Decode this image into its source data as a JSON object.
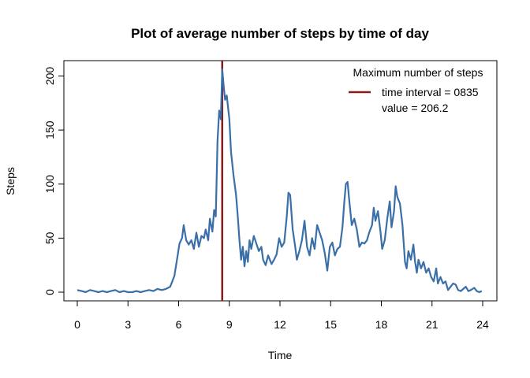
{
  "chart_data": {
    "type": "line",
    "title": "Plot of average number of steps by time of day",
    "xlabel": "Time",
    "ylabel": "Steps",
    "xlim": [
      0,
      24
    ],
    "ylim": [
      0,
      206.2
    ],
    "x_ticks": [
      0,
      3,
      6,
      9,
      12,
      15,
      18,
      21,
      24
    ],
    "y_ticks": [
      0,
      50,
      100,
      150,
      200
    ],
    "grid": false,
    "legend": {
      "position": "top-right",
      "title": "Maximum number of steps",
      "lines": [
        "time interval = 0835",
        "value = 206.2"
      ]
    },
    "series": [
      {
        "color": "#3a6fa8",
        "points": [
          [
            0.0,
            2
          ],
          [
            0.25,
            1
          ],
          [
            0.5,
            0
          ],
          [
            0.75,
            2
          ],
          [
            1.0,
            1
          ],
          [
            1.25,
            0
          ],
          [
            1.5,
            1
          ],
          [
            1.75,
            0
          ],
          [
            2.0,
            1
          ],
          [
            2.25,
            2
          ],
          [
            2.5,
            0
          ],
          [
            2.75,
            1
          ],
          [
            3.0,
            0
          ],
          [
            3.25,
            0
          ],
          [
            3.5,
            1
          ],
          [
            3.75,
            0
          ],
          [
            4.0,
            1
          ],
          [
            4.25,
            2
          ],
          [
            4.5,
            1
          ],
          [
            4.75,
            3
          ],
          [
            5.0,
            2
          ],
          [
            5.25,
            3
          ],
          [
            5.5,
            5
          ],
          [
            5.75,
            15
          ],
          [
            5.9,
            30
          ],
          [
            6.05,
            45
          ],
          [
            6.2,
            50
          ],
          [
            6.3,
            62
          ],
          [
            6.45,
            48
          ],
          [
            6.6,
            44
          ],
          [
            6.75,
            48
          ],
          [
            6.9,
            40
          ],
          [
            7.05,
            55
          ],
          [
            7.2,
            42
          ],
          [
            7.35,
            52
          ],
          [
            7.5,
            50
          ],
          [
            7.6,
            58
          ],
          [
            7.75,
            48
          ],
          [
            7.85,
            68
          ],
          [
            8.0,
            56
          ],
          [
            8.1,
            76
          ],
          [
            8.2,
            70
          ],
          [
            8.3,
            140
          ],
          [
            8.4,
            168
          ],
          [
            8.5,
            160
          ],
          [
            8.58,
            206.2
          ],
          [
            8.67,
            190
          ],
          [
            8.75,
            178
          ],
          [
            8.85,
            182
          ],
          [
            9.0,
            160
          ],
          [
            9.1,
            130
          ],
          [
            9.25,
            108
          ],
          [
            9.4,
            90
          ],
          [
            9.5,
            70
          ],
          [
            9.6,
            48
          ],
          [
            9.7,
            30
          ],
          [
            9.8,
            42
          ],
          [
            9.9,
            24
          ],
          [
            10.0,
            38
          ],
          [
            10.1,
            28
          ],
          [
            10.2,
            48
          ],
          [
            10.3,
            40
          ],
          [
            10.45,
            52
          ],
          [
            10.6,
            45
          ],
          [
            10.75,
            38
          ],
          [
            10.9,
            42
          ],
          [
            11.0,
            30
          ],
          [
            11.15,
            25
          ],
          [
            11.3,
            34
          ],
          [
            11.5,
            26
          ],
          [
            11.65,
            30
          ],
          [
            11.8,
            35
          ],
          [
            11.95,
            50
          ],
          [
            12.1,
            42
          ],
          [
            12.25,
            46
          ],
          [
            12.4,
            70
          ],
          [
            12.5,
            92
          ],
          [
            12.6,
            90
          ],
          [
            12.75,
            58
          ],
          [
            12.9,
            42
          ],
          [
            13.0,
            30
          ],
          [
            13.15,
            38
          ],
          [
            13.3,
            48
          ],
          [
            13.45,
            66
          ],
          [
            13.6,
            42
          ],
          [
            13.75,
            34
          ],
          [
            13.9,
            50
          ],
          [
            14.05,
            40
          ],
          [
            14.2,
            62
          ],
          [
            14.35,
            55
          ],
          [
            14.5,
            48
          ],
          [
            14.65,
            36
          ],
          [
            14.8,
            20
          ],
          [
            14.95,
            42
          ],
          [
            15.1,
            46
          ],
          [
            15.25,
            34
          ],
          [
            15.4,
            40
          ],
          [
            15.55,
            42
          ],
          [
            15.7,
            60
          ],
          [
            15.8,
            82
          ],
          [
            15.9,
            100
          ],
          [
            16.0,
            102
          ],
          [
            16.1,
            85
          ],
          [
            16.25,
            62
          ],
          [
            16.4,
            68
          ],
          [
            16.55,
            58
          ],
          [
            16.7,
            42
          ],
          [
            16.85,
            46
          ],
          [
            17.0,
            45
          ],
          [
            17.15,
            48
          ],
          [
            17.3,
            56
          ],
          [
            17.45,
            62
          ],
          [
            17.55,
            78
          ],
          [
            17.65,
            66
          ],
          [
            17.8,
            75
          ],
          [
            17.95,
            56
          ],
          [
            18.05,
            40
          ],
          [
            18.2,
            48
          ],
          [
            18.35,
            68
          ],
          [
            18.5,
            84
          ],
          [
            18.6,
            60
          ],
          [
            18.75,
            75
          ],
          [
            18.85,
            98
          ],
          [
            18.95,
            88
          ],
          [
            19.1,
            82
          ],
          [
            19.25,
            62
          ],
          [
            19.4,
            28
          ],
          [
            19.5,
            22
          ],
          [
            19.6,
            38
          ],
          [
            19.75,
            30
          ],
          [
            19.9,
            44
          ],
          [
            20.0,
            28
          ],
          [
            20.1,
            18
          ],
          [
            20.2,
            30
          ],
          [
            20.35,
            22
          ],
          [
            20.5,
            28
          ],
          [
            20.65,
            18
          ],
          [
            20.8,
            22
          ],
          [
            20.95,
            14
          ],
          [
            21.1,
            10
          ],
          [
            21.25,
            22
          ],
          [
            21.35,
            8
          ],
          [
            21.5,
            14
          ],
          [
            21.65,
            8
          ],
          [
            21.8,
            10
          ],
          [
            21.95,
            2
          ],
          [
            22.1,
            5
          ],
          [
            22.25,
            8
          ],
          [
            22.4,
            7
          ],
          [
            22.55,
            2
          ],
          [
            22.7,
            1
          ],
          [
            22.85,
            3
          ],
          [
            23.0,
            5
          ],
          [
            23.15,
            1
          ],
          [
            23.3,
            2
          ],
          [
            23.5,
            4
          ],
          [
            23.65,
            1
          ],
          [
            23.8,
            0
          ],
          [
            23.95,
            1
          ]
        ]
      }
    ],
    "max_marker": {
      "x": 8.58,
      "color": "#8b1a1a"
    }
  }
}
